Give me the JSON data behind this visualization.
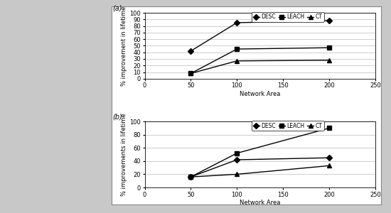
{
  "chart_a": {
    "label": "(a)",
    "x": [
      50,
      100,
      200
    ],
    "series": [
      {
        "name": "DESC",
        "values": [
          42,
          85,
          88
        ],
        "marker": "D",
        "color": "black"
      },
      {
        "name": "LEACH",
        "values": [
          8,
          45,
          47
        ],
        "marker": "s",
        "color": "black"
      },
      {
        "name": "CT",
        "values": [
          8,
          27,
          28
        ],
        "marker": "^",
        "color": "black"
      }
    ],
    "xlabel": "Network Area",
    "ylabel": "% improvement in lifetime",
    "xlim": [
      0,
      250
    ],
    "ylim": [
      0,
      100
    ],
    "xticks": [
      0,
      50,
      100,
      150,
      200,
      250
    ],
    "yticks": [
      0,
      10,
      20,
      30,
      40,
      50,
      60,
      70,
      80,
      90,
      100
    ]
  },
  "chart_b": {
    "label": "(b)",
    "x": [
      50,
      100,
      200
    ],
    "series": [
      {
        "name": "DESC",
        "values": [
          16,
          42,
          45
        ],
        "marker": "D",
        "color": "black"
      },
      {
        "name": "LEACH",
        "values": [
          16,
          52,
          90
        ],
        "marker": "s",
        "color": "black"
      },
      {
        "name": "CT",
        "values": [
          16,
          20,
          33
        ],
        "marker": "^",
        "color": "black"
      }
    ],
    "xlabel": "Network Area",
    "ylabel": "% improvements in lifetime",
    "xlim": [
      0,
      250
    ],
    "ylim": [
      0,
      100
    ],
    "xticks": [
      0,
      50,
      100,
      150,
      200,
      250
    ],
    "yticks": [
      0,
      20,
      40,
      60,
      80,
      100
    ]
  },
  "outer_bg": "#c8c8c8",
  "panel_bg": "#ffffff",
  "line_width": 1.0,
  "marker_size": 4,
  "font_size": 6,
  "label_font_size": 6,
  "legend_font_size": 5.5
}
